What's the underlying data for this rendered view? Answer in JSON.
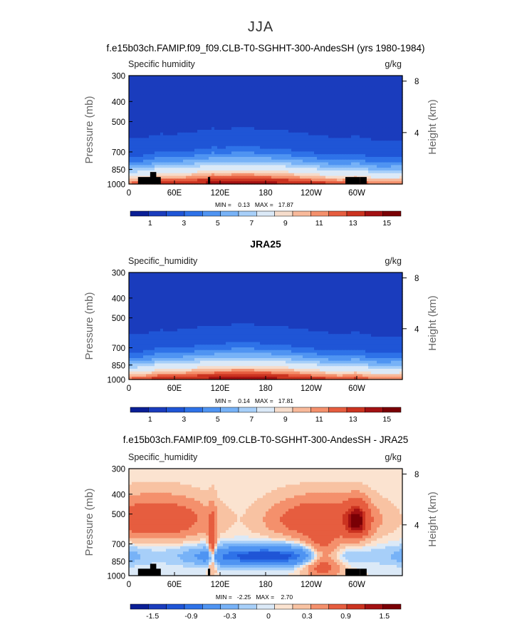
{
  "figure": {
    "season_title": "JJA",
    "colors": {
      "level_12": [
        "#0a1f96",
        "#1a3cbd",
        "#1f55d6",
        "#2e72e8",
        "#4f94f2",
        "#77b2f7",
        "#a7cff9",
        "#dbe9f7",
        "#f6dccb",
        "#f8b99a",
        "#f4906c",
        "#e65d3f",
        "#cb3320",
        "#a31112",
        "#7a0005"
      ],
      "diff_12": [
        "#0a1f96",
        "#1a3cbd",
        "#1f55d6",
        "#2e72e8",
        "#4f94f2",
        "#77b2f7",
        "#a7cff9",
        "#dbe9f7",
        "#fbe3d0",
        "#f8c2a2",
        "#f4906c",
        "#e65d3f",
        "#cb3320",
        "#a31112",
        "#7a0005"
      ],
      "land": "#000000",
      "frame": "#000000"
    }
  },
  "chart_data": [
    {
      "type": "heatmap",
      "id": "model",
      "title": "f.e15b03ch.FAMIP.f09_f09.CLB-T0-SGHHT-300-AndesSH (yrs 1980-1984)",
      "left_label": "Specific humidity",
      "right_label": "g/kg",
      "ylabel": "Pressure (mb)",
      "y2label": "Height (km)",
      "xticks": [
        "0",
        "60E",
        "120E",
        "180",
        "120W",
        "60W"
      ],
      "xtick_lon": [
        0,
        60,
        120,
        180,
        240,
        300
      ],
      "xlim": [
        0,
        360
      ],
      "yticks": [
        "300",
        "400",
        "500",
        "700",
        "850",
        "1000"
      ],
      "ytick_p": [
        300,
        400,
        500,
        700,
        850,
        1000
      ],
      "ylim": [
        300,
        1000
      ],
      "y2ticks": [
        "8",
        "4"
      ],
      "y2tick_km": [
        8,
        4
      ],
      "minmax_text": "MIN =    0.13   MAX =   17.87",
      "min": 0.13,
      "max": 17.87,
      "colorbar_labels": [
        "1",
        "3",
        "5",
        "7",
        "9",
        "11",
        "13",
        "15"
      ],
      "contour_levels": [
        0,
        1,
        2,
        3,
        4,
        5,
        6,
        7,
        8,
        9,
        10,
        11,
        12,
        13,
        14,
        15,
        16
      ],
      "land_blocks": [
        {
          "lon0": 12,
          "lon1": 42,
          "p_top": 925
        },
        {
          "lon0": 28,
          "lon1": 36,
          "p_top": 875
        },
        {
          "lon0": 104,
          "lon1": 107,
          "p_top": 925
        },
        {
          "lon0": 285,
          "lon1": 304,
          "p_top": 925
        },
        {
          "lon0": 304,
          "lon1": 313,
          "p_top": 925
        }
      ]
    },
    {
      "type": "heatmap",
      "id": "obs",
      "title": "JRA25",
      "left_label": "Specific_humidity",
      "right_label": "g/kg",
      "ylabel": "Pressure (mb)",
      "y2label": "Height (km)",
      "xticks": [
        "0",
        "60E",
        "120E",
        "180",
        "120W",
        "60W"
      ],
      "xtick_lon": [
        0,
        60,
        120,
        180,
        240,
        300
      ],
      "xlim": [
        0,
        360
      ],
      "yticks": [
        "300",
        "400",
        "500",
        "700",
        "850",
        "1000"
      ],
      "ytick_p": [
        300,
        400,
        500,
        700,
        850,
        1000
      ],
      "ylim": [
        300,
        1000
      ],
      "y2ticks": [
        "8",
        "4"
      ],
      "y2tick_km": [
        8,
        4
      ],
      "minmax_text": "MIN =    0.14   MAX =   17.81",
      "min": 0.14,
      "max": 17.81,
      "colorbar_labels": [
        "1",
        "3",
        "5",
        "7",
        "9",
        "11",
        "13",
        "15"
      ],
      "contour_levels": [
        0,
        1,
        2,
        3,
        4,
        5,
        6,
        7,
        8,
        9,
        10,
        11,
        12,
        13,
        14,
        15,
        16
      ],
      "land_blocks": []
    },
    {
      "type": "heatmap",
      "id": "diff",
      "title": "f.e15b03ch.FAMIP.f09_f09.CLB-T0-SGHHT-300-AndesSH - JRA25",
      "left_label": "Specific_humidity",
      "right_label": "g/kg",
      "ylabel": "Pressure (mb)",
      "y2label": "Height (km)",
      "xticks": [
        "0",
        "60E",
        "120E",
        "180",
        "120W",
        "60W"
      ],
      "xtick_lon": [
        0,
        60,
        120,
        180,
        240,
        300
      ],
      "xlim": [
        0,
        360
      ],
      "yticks": [
        "300",
        "400",
        "500",
        "700",
        "850",
        "1000"
      ],
      "ytick_p": [
        300,
        400,
        500,
        700,
        850,
        1000
      ],
      "ylim": [
        300,
        1000
      ],
      "y2ticks": [
        "8",
        "4"
      ],
      "y2tick_km": [
        8,
        4
      ],
      "minmax_text": "MIN =   -2.25   MAX =    2.70",
      "min": -2.25,
      "max": 2.7,
      "colorbar_labels": [
        "-1.5",
        "-0.9",
        "-0.3",
        "0",
        "0.3",
        "0.9",
        "1.5"
      ],
      "contour_levels": [
        -2.1,
        -1.8,
        -1.5,
        -1.2,
        -0.9,
        -0.6,
        -0.3,
        -0.1,
        0,
        0.1,
        0.3,
        0.6,
        0.9,
        1.2,
        1.5,
        1.8
      ],
      "land_blocks": [
        {
          "lon0": 12,
          "lon1": 42,
          "p_top": 925
        },
        {
          "lon0": 28,
          "lon1": 36,
          "p_top": 875
        },
        {
          "lon0": 104,
          "lon1": 107,
          "p_top": 925
        },
        {
          "lon0": 285,
          "lon1": 304,
          "p_top": 925
        },
        {
          "lon0": 304,
          "lon1": 313,
          "p_top": 925
        }
      ]
    }
  ]
}
